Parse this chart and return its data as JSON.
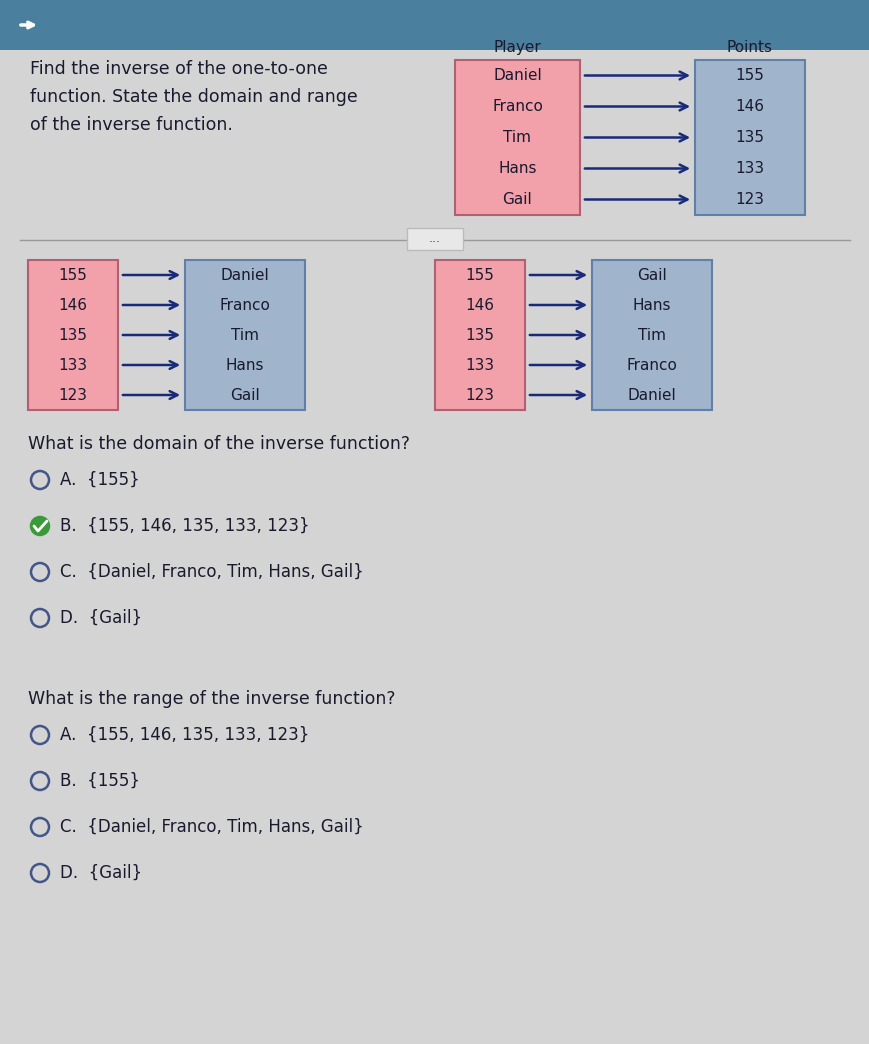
{
  "bg_color": "#d4d4d4",
  "top_bg": "#4a7f9e",
  "header_text": "Find the inverse of the one-to-one\nfunction. State the domain and range\nof the inverse function.",
  "original_players": [
    "Daniel",
    "Franco",
    "Tim",
    "Hans",
    "Gail"
  ],
  "original_points": [
    "155",
    "146",
    "135",
    "133",
    "123"
  ],
  "player_label": "Player",
  "points_label": "Points",
  "box1_left": [
    "155",
    "146",
    "135",
    "133",
    "123"
  ],
  "box1_right": [
    "Daniel",
    "Franco",
    "Tim",
    "Hans",
    "Gail"
  ],
  "box2_left": [
    "155",
    "146",
    "135",
    "133",
    "123"
  ],
  "box2_right": [
    "Gail",
    "Hans",
    "Tim",
    "Franco",
    "Daniel"
  ],
  "domain_question": "What is the domain of the inverse function?",
  "domain_options": [
    "A.  {155}",
    "B.  {155, 146, 135, 133, 123}",
    "C.  {Daniel, Franco, Tim, Hans, Gail}",
    "D.  {Gail}"
  ],
  "domain_selected": 1,
  "range_question": "What is the range of the inverse function?",
  "range_options": [
    "A.  {155, 146, 135, 133, 123}",
    "B.  {155}",
    "C.  {Daniel, Franco, Tim, Hans, Gail}",
    "D.  {Gail}"
  ],
  "range_selected": -1,
  "pink_color": "#f2a0aa",
  "blue_color": "#a0b4cc",
  "arrow_color": "#1a2a7a",
  "text_color": "#1a1a2e",
  "divider_color": "#999999",
  "figw": 8.7,
  "figh": 10.44,
  "dpi": 100
}
